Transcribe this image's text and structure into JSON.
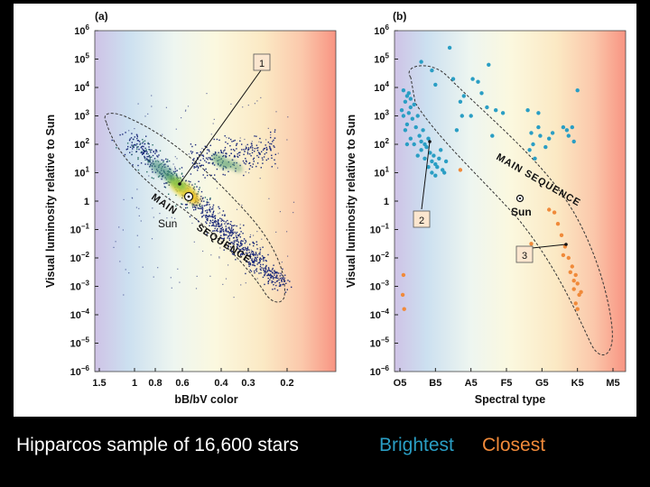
{
  "caption": {
    "sample": "Hipparcos sample of 16,600 stars",
    "brightest": "Brightest",
    "closest": "Closest",
    "brightest_color": "#2a9ec4",
    "closest_color": "#f08a3a"
  },
  "chart_data": [
    {
      "type": "scatter",
      "panel": "(a)",
      "xlabel": "bB/bV color",
      "ylabel": "Visual luminosity relative to Sun",
      "x_ticks": [
        "1.5",
        "1",
        "0.8",
        "0.6",
        "0.4",
        "0.3",
        "0.2"
      ],
      "y_ticks": [
        "10^6",
        "10^5",
        "10^4",
        "10^3",
        "10^2",
        "10^1",
        "1",
        "10^-1",
        "10^-2",
        "10^-3",
        "10^-4",
        "10^-5",
        "10^-6"
      ],
      "ylim_log10": [
        -6,
        6
      ],
      "annotations": [
        "MAIN SEQUENCE",
        "Sun",
        "1"
      ],
      "series": [
        {
          "name": "Hipparcos sample",
          "count_label": "16,600 stars",
          "density_regions": [
            {
              "name": "main sequence",
              "from": {
                "logL": 1.8,
                "t": 0.35
              },
              "to": {
                "logL": -3.0,
                "t": 0.7
              }
            },
            {
              "name": "red giant clump",
              "logL": 1.5
            }
          ]
        }
      ]
    },
    {
      "type": "scatter",
      "panel": "(b)",
      "xlabel": "Spectral type",
      "ylabel": "Visual luminosity relative to Sun",
      "categories": [
        "O5",
        "B5",
        "A5",
        "F5",
        "G5",
        "K5",
        "M5"
      ],
      "y_ticks": [
        "10^6",
        "10^5",
        "10^4",
        "10^3",
        "10^2",
        "10^1",
        "1",
        "10^-1",
        "10^-2",
        "10^-3",
        "10^-4",
        "10^-5",
        "10^-6"
      ],
      "ylim_log10": [
        -6,
        6
      ],
      "annotations": [
        "MAIN SEQUENCE",
        "Sun",
        "2",
        "3"
      ],
      "series": [
        {
          "name": "Brightest",
          "color": "#2a9ec4",
          "points": [
            [
              0.1,
              3.9
            ],
            [
              0.2,
              3.7
            ],
            [
              0.15,
              3.5
            ],
            [
              0.3,
              3.3
            ],
            [
              0.25,
              3.1
            ],
            [
              0.1,
              3.0
            ],
            [
              0.35,
              2.9
            ],
            [
              0.2,
              2.7
            ],
            [
              0.3,
              3.6
            ],
            [
              0.05,
              3.2
            ],
            [
              0.4,
              3.4
            ],
            [
              0.45,
              2.6
            ],
            [
              0.5,
              3.0
            ],
            [
              0.55,
              2.3
            ],
            [
              0.6,
              2.1
            ],
            [
              0.65,
              2.5
            ],
            [
              0.7,
              2.0
            ],
            [
              0.75,
              1.9
            ],
            [
              0.8,
              2.2
            ],
            [
              0.85,
              1.7
            ],
            [
              0.9,
              1.4
            ],
            [
              0.95,
              1.6
            ],
            [
              1.0,
              1.3
            ],
            [
              1.05,
              1.2
            ],
            [
              1.1,
              1.5
            ],
            [
              1.2,
              1.1
            ],
            [
              1.3,
              1.4
            ],
            [
              0.5,
              1.6
            ],
            [
              0.6,
              1.8
            ],
            [
              0.7,
              1.5
            ],
            [
              0.8,
              1.2
            ],
            [
              0.9,
              1.0
            ],
            [
              1.0,
              0.9
            ],
            [
              1.15,
              1.8
            ],
            [
              1.25,
              1.0
            ],
            [
              0.4,
              2.0
            ],
            [
              0.3,
              2.2
            ],
            [
              0.2,
              2.0
            ],
            [
              0.15,
              2.5
            ],
            [
              0.25,
              3.8
            ],
            [
              0.6,
              4.9
            ],
            [
              0.9,
              4.6
            ],
            [
              1.0,
              4.1
            ],
            [
              1.4,
              5.4
            ],
            [
              1.5,
              4.3
            ],
            [
              1.7,
              3.5
            ],
            [
              1.8,
              3.7
            ],
            [
              2.2,
              4.2
            ],
            [
              2.5,
              4.8
            ],
            [
              2.45,
              3.3
            ],
            [
              2.7,
              3.2
            ],
            [
              2.0,
              3.0
            ],
            [
              2.3,
              3.8
            ],
            [
              2.9,
              3.1
            ],
            [
              3.6,
              3.2
            ],
            [
              3.9,
              3.1
            ],
            [
              3.7,
              2.4
            ],
            [
              3.75,
              2.0
            ],
            [
              3.65,
              1.8
            ],
            [
              3.9,
              2.6
            ],
            [
              3.95,
              2.3
            ],
            [
              4.1,
              1.9
            ],
            [
              3.8,
              1.5
            ],
            [
              4.2,
              2.2
            ],
            [
              4.3,
              2.4
            ],
            [
              4.6,
              2.6
            ],
            [
              4.7,
              2.5
            ],
            [
              4.75,
              2.3
            ],
            [
              4.85,
              2.6
            ],
            [
              5.0,
              3.9
            ],
            [
              4.9,
              2.1
            ],
            [
              1.6,
              2.5
            ],
            [
              1.75,
              3.0
            ],
            [
              2.6,
              2.3
            ],
            [
              2.05,
              4.3
            ]
          ]
        },
        {
          "name": "Closest",
          "color": "#f08a3a",
          "points": [
            [
              4.2,
              -0.3
            ],
            [
              4.35,
              -0.4
            ],
            [
              4.45,
              -0.8
            ],
            [
              4.55,
              -1.2
            ],
            [
              4.65,
              -1.6
            ],
            [
              4.75,
              -2.0
            ],
            [
              4.85,
              -2.3
            ],
            [
              4.95,
              -2.6
            ],
            [
              5.0,
              -2.9
            ],
            [
              4.9,
              -3.1
            ],
            [
              5.05,
              -3.3
            ],
            [
              4.95,
              -3.6
            ],
            [
              5.0,
              -3.8
            ],
            [
              5.1,
              -3.2
            ],
            [
              4.8,
              -2.5
            ],
            [
              4.9,
              -2.8
            ],
            [
              4.6,
              -1.9
            ],
            [
              0.1,
              -2.6
            ],
            [
              0.08,
              -3.3
            ],
            [
              0.12,
              -3.8
            ],
            [
              1.7,
              1.1
            ],
            [
              3.7,
              -1.5
            ]
          ]
        }
      ]
    }
  ]
}
